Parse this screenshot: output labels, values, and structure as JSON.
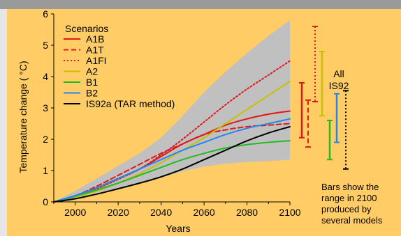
{
  "colors": {
    "background": "#FFCC66",
    "top_bar": "#9a9a9a",
    "left_strip": "#e6e6e6",
    "uncertainty_band": "#c0c0c0"
  },
  "chart_data": {
    "type": "line",
    "xlabel": "Years",
    "ylabel": "Temperature change ( °C)",
    "xlim": [
      1990,
      2100
    ],
    "ylim": [
      0,
      6
    ],
    "xticks": [
      2000,
      2020,
      2040,
      2060,
      2080,
      2100
    ],
    "yticks": [
      0,
      1,
      2,
      3,
      4,
      5,
      6
    ],
    "grid": false,
    "legend": {
      "title": "Scenarios",
      "placement": "top-left"
    },
    "band": {
      "x": [
        1990,
        2000,
        2010,
        2020,
        2030,
        2040,
        2050,
        2060,
        2070,
        2080,
        2090,
        2100
      ],
      "upper": [
        0,
        0.35,
        0.75,
        1.15,
        1.55,
        2.05,
        2.75,
        3.5,
        4.15,
        4.75,
        5.3,
        5.8
      ],
      "lower": [
        0,
        0.12,
        0.28,
        0.42,
        0.58,
        0.78,
        0.98,
        1.13,
        1.22,
        1.27,
        1.3,
        1.35
      ]
    },
    "series": [
      {
        "name": "A1B",
        "color": "#e01818",
        "dash": "solid",
        "x": [
          1990,
          2000,
          2010,
          2020,
          2030,
          2040,
          2050,
          2060,
          2070,
          2080,
          2090,
          2100
        ],
        "y": [
          0,
          0.2,
          0.45,
          0.75,
          1.05,
          1.45,
          1.85,
          2.15,
          2.45,
          2.65,
          2.8,
          2.9
        ]
      },
      {
        "name": "A1T",
        "color": "#e01818",
        "dash": "dashed",
        "x": [
          1990,
          2000,
          2010,
          2020,
          2030,
          2040,
          2050,
          2060,
          2070,
          2080,
          2090,
          2100
        ],
        "y": [
          0,
          0.2,
          0.5,
          0.85,
          1.2,
          1.55,
          1.85,
          2.15,
          2.3,
          2.4,
          2.45,
          2.5
        ]
      },
      {
        "name": "A1FI",
        "color": "#e01818",
        "dash": "dotted",
        "x": [
          1990,
          2000,
          2010,
          2020,
          2030,
          2040,
          2050,
          2060,
          2070,
          2080,
          2090,
          2100
        ],
        "y": [
          0,
          0.18,
          0.42,
          0.72,
          1.05,
          1.5,
          2.0,
          2.55,
          3.1,
          3.6,
          4.05,
          4.5
        ]
      },
      {
        "name": "A2",
        "color": "#c8c000",
        "dash": "solid",
        "x": [
          1990,
          2000,
          2010,
          2020,
          2030,
          2040,
          2050,
          2060,
          2070,
          2080,
          2090,
          2100
        ],
        "y": [
          0,
          0.15,
          0.35,
          0.6,
          0.9,
          1.25,
          1.65,
          2.05,
          2.5,
          2.95,
          3.4,
          3.85
        ]
      },
      {
        "name": "B1",
        "color": "#22bb22",
        "dash": "solid",
        "x": [
          1990,
          2000,
          2010,
          2020,
          2030,
          2040,
          2050,
          2060,
          2070,
          2080,
          2090,
          2100
        ],
        "y": [
          0,
          0.18,
          0.38,
          0.6,
          0.85,
          1.1,
          1.35,
          1.55,
          1.72,
          1.83,
          1.9,
          1.95
        ]
      },
      {
        "name": "B2",
        "color": "#2288ee",
        "dash": "solid",
        "x": [
          1990,
          2000,
          2010,
          2020,
          2030,
          2040,
          2050,
          2060,
          2070,
          2080,
          2090,
          2100
        ],
        "y": [
          0,
          0.2,
          0.45,
          0.75,
          1.05,
          1.35,
          1.65,
          1.9,
          2.15,
          2.35,
          2.5,
          2.65
        ]
      },
      {
        "name": "IS92a (TAR method)",
        "color": "#000000",
        "dash": "solid",
        "x": [
          1990,
          2000,
          2010,
          2020,
          2030,
          2040,
          2050,
          2060,
          2070,
          2080,
          2090,
          2100
        ],
        "y": [
          0,
          0.1,
          0.25,
          0.42,
          0.6,
          0.8,
          1.05,
          1.35,
          1.65,
          1.95,
          2.2,
          2.4
        ]
      }
    ],
    "range_bars": [
      {
        "name": "A1B",
        "color": "#e01818",
        "dash": "solid",
        "low": 2.05,
        "high": 3.8
      },
      {
        "name": "A1T",
        "color": "#e01818",
        "dash": "dashed",
        "low": 1.75,
        "high": 3.25
      },
      {
        "name": "A1FI",
        "color": "#e01818",
        "dash": "dotted",
        "low": 3.2,
        "high": 5.6
      },
      {
        "name": "A2",
        "color": "#c8c000",
        "dash": "solid",
        "low": 2.75,
        "high": 4.8
      },
      {
        "name": "B1",
        "color": "#22bb22",
        "dash": "solid",
        "low": 1.35,
        "high": 2.6
      },
      {
        "name": "B2",
        "color": "#2288ee",
        "dash": "solid",
        "low": 1.9,
        "high": 3.45
      },
      {
        "name": "All IS92",
        "color": "#000000",
        "dash": "dotted",
        "low": 1.05,
        "high": 3.55
      }
    ],
    "annotations": {
      "range_bar_label_line1": "All",
      "range_bar_label_line2": "IS92",
      "note_lines": [
        "Bars show the",
        "range in 2100",
        "produced by",
        "several models"
      ]
    }
  }
}
